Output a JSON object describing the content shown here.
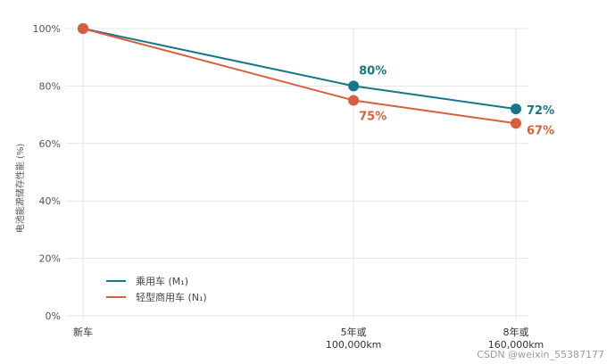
{
  "watermark": "CSDN @weixin_55387177",
  "chart_data": {
    "type": "line",
    "ylabel": "电池能源储存性能 (%)",
    "ylim": [
      0,
      100
    ],
    "yticks": [
      "0%",
      "20%",
      "40%",
      "60%",
      "80%",
      "100%"
    ],
    "x": [
      0,
      5,
      8
    ],
    "x_tick_labels": [
      [
        "新车"
      ],
      [
        "5年或",
        "100,000km"
      ],
      [
        "8年或",
        "160,000km"
      ]
    ],
    "grid": true,
    "legend_position": "bottom-left",
    "series": [
      {
        "name": "乘用车 (M₁)",
        "color": "#14778a",
        "values": [
          100,
          80,
          72
        ],
        "labels": [
          "",
          "80%",
          "72%"
        ]
      },
      {
        "name": "轻型商用车 (N₁)",
        "color": "#d95d3e",
        "values": [
          100,
          75,
          67
        ],
        "labels": [
          "",
          "75%",
          "67%"
        ]
      }
    ]
  }
}
